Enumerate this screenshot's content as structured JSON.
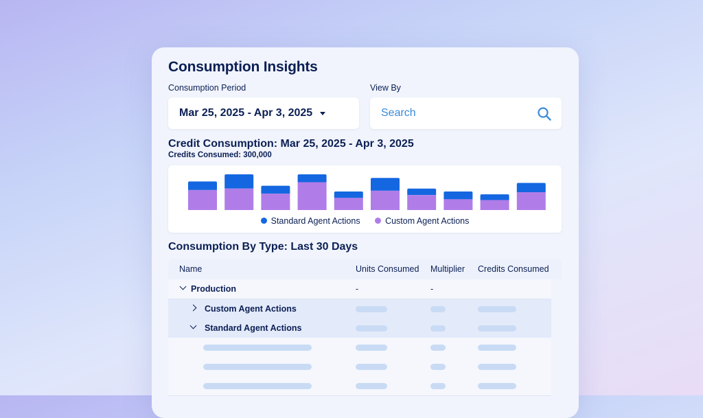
{
  "page": {
    "title": "Consumption Insights",
    "consumption_period_label": "Consumption Period",
    "view_by_label": "View By",
    "period_value": "Mar 25, 2025 - Apr 3, 2025",
    "search": {
      "placeholder": "Search"
    }
  },
  "credit_section": {
    "title": "Credit Consumption: Mar 25, 2025 - Apr 3, 2025",
    "subtitle": "Credits Consumed: 300,000"
  },
  "colors": {
    "standard": "#1467e0",
    "custom": "#b07de8",
    "text": "#0b1f54",
    "accent": "#3b8ad8"
  },
  "chart_data": {
    "type": "bar",
    "stacked": true,
    "categories": [
      "",
      "",
      "",
      "",
      "",
      "",
      "",
      "",
      "",
      ""
    ],
    "series": [
      {
        "name": "Custom Agent Actions",
        "values": [
          28,
          30,
          23,
          39,
          17,
          27,
          21,
          15,
          14,
          25
        ]
      },
      {
        "name": "Standard Agent Actions",
        "values": [
          12,
          20,
          11,
          11,
          9,
          18,
          9,
          11,
          8,
          13
        ]
      }
    ],
    "ylim": [
      0,
      50
    ],
    "legend_position": "bottom",
    "grid": false
  },
  "table_section": {
    "title": "Consumption By Type: Last 30 Days",
    "columns": [
      "Name",
      "Units Consumed",
      "Multiplier",
      "Credits Consumed"
    ],
    "rows": [
      {
        "name": "Production",
        "units": "-",
        "multiplier": "-"
      },
      {
        "name": "Custom Agent Actions"
      },
      {
        "name": "Standard Agent Actions"
      }
    ]
  },
  "icons": {
    "search": "search-icon",
    "dropdown": "caret-down-icon",
    "expand": "chevron-right-icon",
    "collapse": "chevron-down-icon"
  }
}
